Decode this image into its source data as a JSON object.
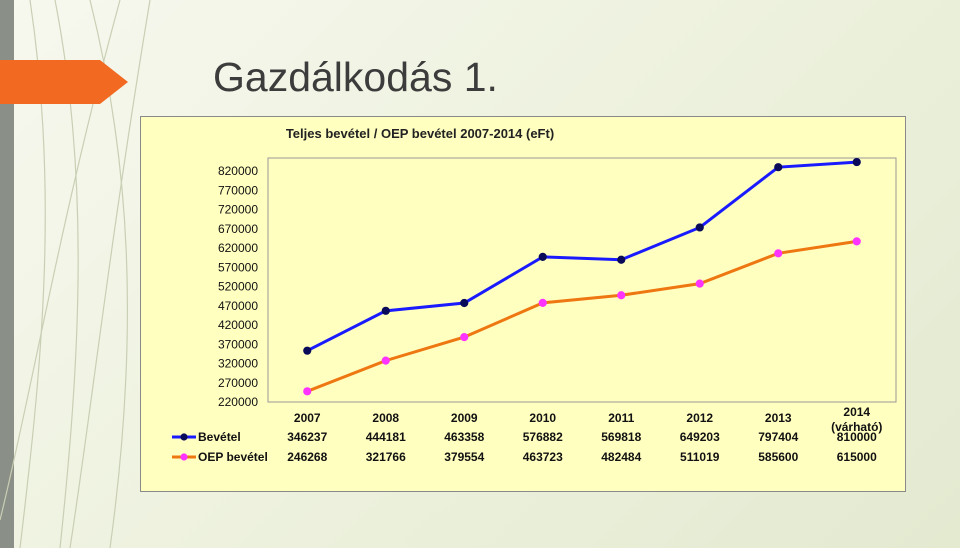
{
  "slide": {
    "title": "Gazdálkodás 1."
  },
  "chart_data": {
    "type": "line",
    "title": "Teljes bevétel / OEP bevétel 2007-2014 (eFt)",
    "categories": [
      "2007",
      "2008",
      "2009",
      "2010",
      "2011",
      "2012",
      "2013",
      "2014\n(várható)"
    ],
    "y_ticks": [
      "820000",
      "770000",
      "720000",
      "670000",
      "620000",
      "570000",
      "520000",
      "470000",
      "420000",
      "370000",
      "320000",
      "270000",
      "220000"
    ],
    "ylim": [
      220000,
      820000
    ],
    "grid": false,
    "legend": "data-table-left",
    "series": [
      {
        "name": "Bevétel",
        "color": "#1a1aff",
        "marker_color": "#0a0a5a",
        "values": [
          346237,
          444181,
          463358,
          576882,
          569818,
          649203,
          797404,
          810000
        ],
        "labels": [
          "346237",
          "444181",
          "463358",
          "576882",
          "569818",
          "649203",
          "797404",
          "810000"
        ]
      },
      {
        "name": "OEP bevétel",
        "color": "#ee7711",
        "marker_color": "#ff33ff",
        "values": [
          246268,
          321766,
          379554,
          463723,
          482484,
          511019,
          585600,
          615000
        ],
        "labels": [
          "246268",
          "321766",
          "379554",
          "463723",
          "482484",
          "511019",
          "585600",
          "615000"
        ]
      }
    ]
  }
}
